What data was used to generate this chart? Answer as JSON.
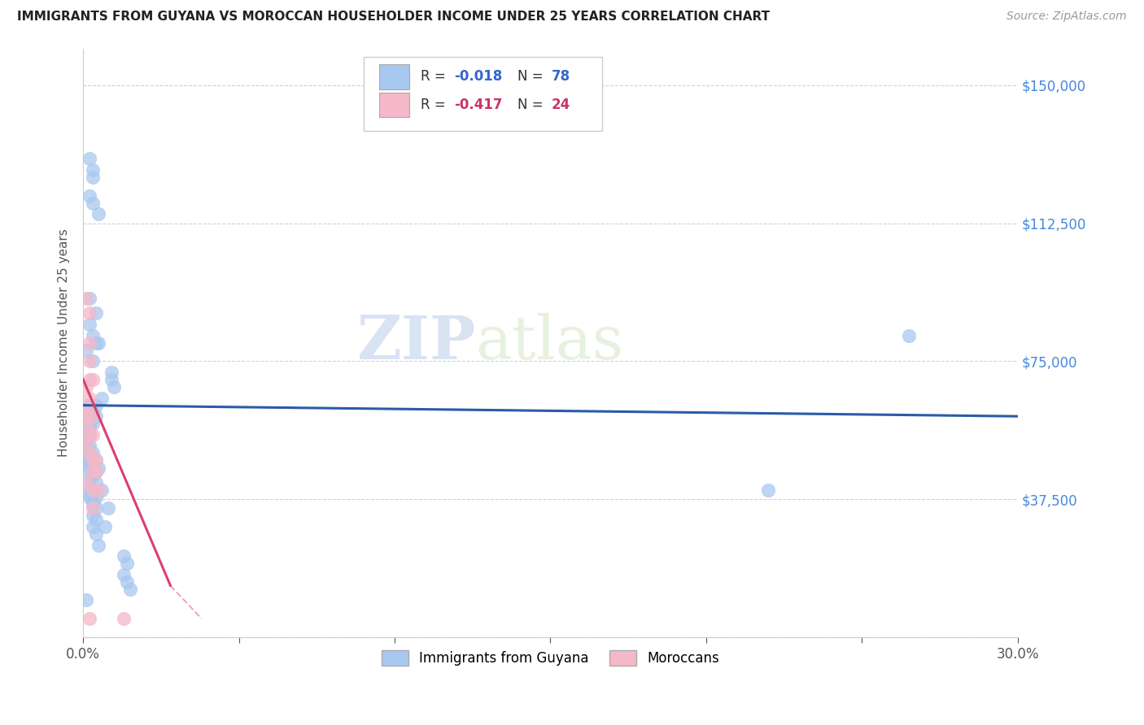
{
  "title": "IMMIGRANTS FROM GUYANA VS MOROCCAN HOUSEHOLDER INCOME UNDER 25 YEARS CORRELATION CHART",
  "source": "Source: ZipAtlas.com",
  "ylabel": "Householder Income Under 25 years",
  "xlim": [
    0,
    0.3
  ],
  "ylim": [
    0,
    160000
  ],
  "xticks": [
    0.0,
    0.05,
    0.1,
    0.15,
    0.2,
    0.25,
    0.3
  ],
  "xticklabels": [
    "0.0%",
    "",
    "",
    "",
    "",
    "",
    "30.0%"
  ],
  "yticks": [
    0,
    37500,
    75000,
    112500,
    150000
  ],
  "yticklabels": [
    "",
    "$37,500",
    "$75,000",
    "$112,500",
    "$150,000"
  ],
  "guyana_color": "#A8C8F0",
  "moroccan_color": "#F5B8C8",
  "guyana_line_color": "#2B5BA8",
  "moroccan_line_color": "#D94070",
  "background_color": "#ffffff",
  "grid_color": "#cccccc",
  "watermark": "ZIPatlas",
  "guyana_line": [
    0.0,
    63000,
    0.3,
    60000
  ],
  "moroccan_line_solid": [
    0.0,
    70000,
    0.028,
    14000
  ],
  "moroccan_line_dash": [
    0.028,
    14000,
    0.038,
    5000
  ],
  "guyana_points": [
    [
      0.002,
      130000
    ],
    [
      0.003,
      127000
    ],
    [
      0.003,
      125000
    ],
    [
      0.002,
      120000
    ],
    [
      0.003,
      118000
    ],
    [
      0.005,
      115000
    ],
    [
      0.002,
      92000
    ],
    [
      0.004,
      88000
    ],
    [
      0.002,
      85000
    ],
    [
      0.003,
      82000
    ],
    [
      0.004,
      80000
    ],
    [
      0.005,
      80000
    ],
    [
      0.001,
      78000
    ],
    [
      0.003,
      75000
    ],
    [
      0.009,
      72000
    ],
    [
      0.009,
      70000
    ],
    [
      0.01,
      68000
    ],
    [
      0.006,
      65000
    ],
    [
      0.001,
      63000
    ],
    [
      0.002,
      63000
    ],
    [
      0.003,
      63000
    ],
    [
      0.004,
      63000
    ],
    [
      0.001,
      62000
    ],
    [
      0.002,
      62000
    ],
    [
      0.001,
      61000
    ],
    [
      0.002,
      61000
    ],
    [
      0.003,
      61000
    ],
    [
      0.001,
      60000
    ],
    [
      0.002,
      60000
    ],
    [
      0.004,
      60000
    ],
    [
      0.001,
      59000
    ],
    [
      0.002,
      59000
    ],
    [
      0.001,
      58000
    ],
    [
      0.002,
      58000
    ],
    [
      0.003,
      58000
    ],
    [
      0.001,
      57000
    ],
    [
      0.002,
      57000
    ],
    [
      0.001,
      56000
    ],
    [
      0.001,
      55000
    ],
    [
      0.002,
      55000
    ],
    [
      0.001,
      54000
    ],
    [
      0.001,
      53000
    ],
    [
      0.001,
      52000
    ],
    [
      0.002,
      52000
    ],
    [
      0.001,
      51000
    ],
    [
      0.001,
      50000
    ],
    [
      0.003,
      50000
    ],
    [
      0.001,
      49000
    ],
    [
      0.001,
      48000
    ],
    [
      0.004,
      48000
    ],
    [
      0.001,
      47000
    ],
    [
      0.002,
      46000
    ],
    [
      0.005,
      46000
    ],
    [
      0.004,
      45000
    ],
    [
      0.002,
      44000
    ],
    [
      0.003,
      44000
    ],
    [
      0.004,
      42000
    ],
    [
      0.002,
      41000
    ],
    [
      0.003,
      40000
    ],
    [
      0.006,
      40000
    ],
    [
      0.002,
      39000
    ],
    [
      0.002,
      38000
    ],
    [
      0.004,
      38000
    ],
    [
      0.003,
      37000
    ],
    [
      0.003,
      36000
    ],
    [
      0.004,
      35000
    ],
    [
      0.008,
      35000
    ],
    [
      0.003,
      33000
    ],
    [
      0.004,
      32000
    ],
    [
      0.003,
      30000
    ],
    [
      0.007,
      30000
    ],
    [
      0.004,
      28000
    ],
    [
      0.005,
      25000
    ],
    [
      0.013,
      22000
    ],
    [
      0.014,
      20000
    ],
    [
      0.013,
      17000
    ],
    [
      0.014,
      15000
    ],
    [
      0.015,
      13000
    ],
    [
      0.001,
      10000
    ],
    [
      0.22,
      40000
    ],
    [
      0.265,
      82000
    ]
  ],
  "moroccan_points": [
    [
      0.001,
      92000
    ],
    [
      0.002,
      88000
    ],
    [
      0.002,
      80000
    ],
    [
      0.002,
      75000
    ],
    [
      0.002,
      70000
    ],
    [
      0.003,
      70000
    ],
    [
      0.001,
      68000
    ],
    [
      0.002,
      65000
    ],
    [
      0.002,
      62000
    ],
    [
      0.001,
      60000
    ],
    [
      0.003,
      60000
    ],
    [
      0.001,
      58000
    ],
    [
      0.002,
      55000
    ],
    [
      0.003,
      55000
    ],
    [
      0.001,
      52000
    ],
    [
      0.002,
      50000
    ],
    [
      0.003,
      48000
    ],
    [
      0.004,
      48000
    ],
    [
      0.003,
      45000
    ],
    [
      0.004,
      45000
    ],
    [
      0.001,
      42000
    ],
    [
      0.003,
      40000
    ],
    [
      0.005,
      40000
    ],
    [
      0.003,
      35000
    ],
    [
      0.002,
      5000
    ],
    [
      0.013,
      5000
    ]
  ]
}
